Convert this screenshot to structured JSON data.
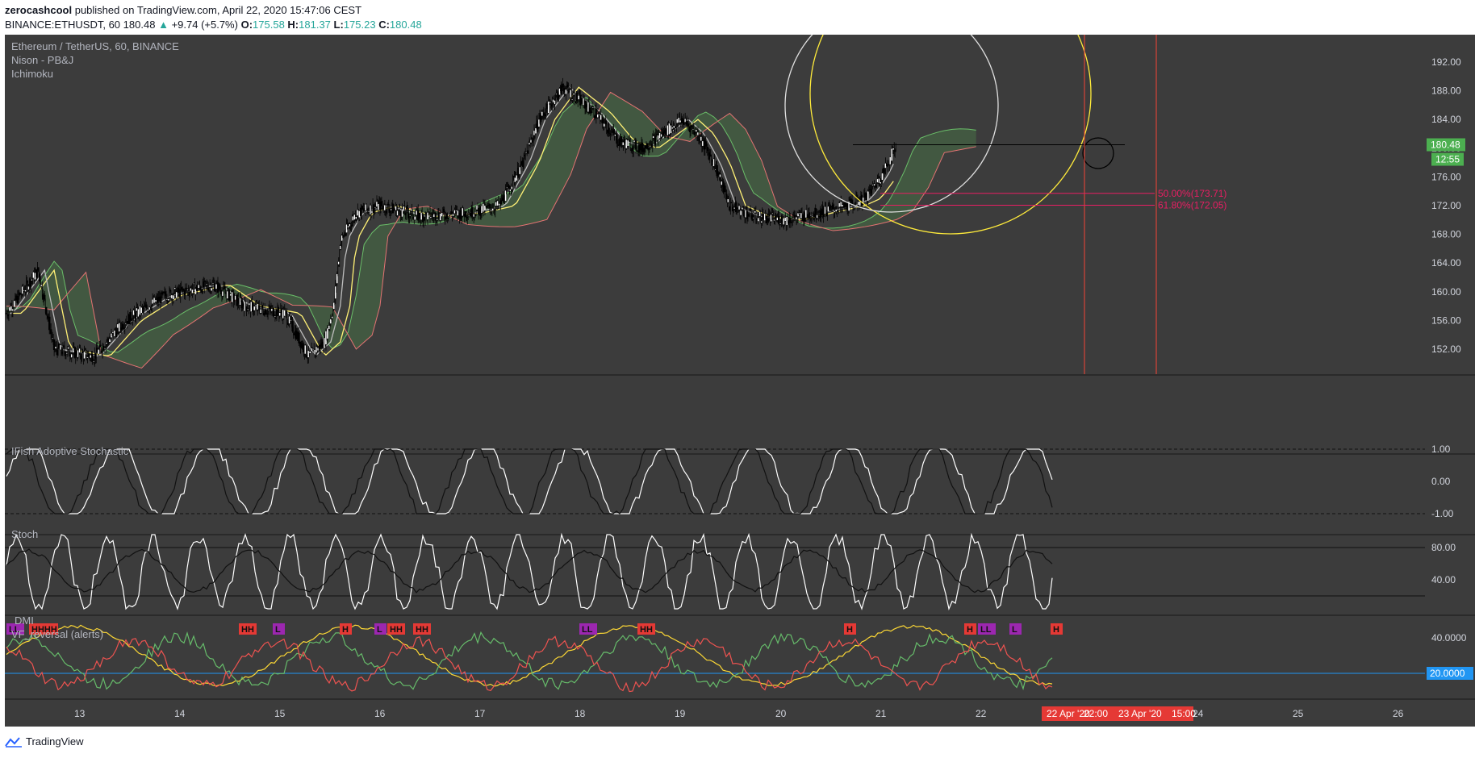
{
  "header": {
    "username": "zerocashcool",
    "published_text": "published on TradingView.com, April 22, 2020 15:47:06 CEST"
  },
  "ohlc": {
    "symbol": "BINANCE:ETHUSDT, 60",
    "last": "180.48",
    "change_arrow": "▲",
    "change": "+9.74 (+5.7%)",
    "o_label": "O:",
    "o": "175.58",
    "h_label": "H:",
    "h": "181.37",
    "l_label": "L:",
    "l": "175.23",
    "c_label": "C:",
    "c": "180.48"
  },
  "main_pane": {
    "title": "Ethereum / TetherUS, 60, BINANCE",
    "indicators": [
      "Nison - PB&J",
      "Ichimoku"
    ],
    "price_ticks": [
      "192.00",
      "188.00",
      "184.00",
      "180.00",
      "176.00",
      "172.00",
      "168.00",
      "164.00",
      "160.00",
      "156.00",
      "152.00"
    ],
    "last_price_badge": "180.48",
    "countdown_badge": "12:55",
    "fib_labels": [
      "50.00%(173.71)",
      "61.80%(172.05)"
    ]
  },
  "panes": {
    "ifish": {
      "title": "IFish Adoptive Stochastic",
      "ticks": [
        "1.00",
        "0.00",
        "-1.00"
      ]
    },
    "stoch": {
      "title": "Stoch",
      "ticks": [
        "80.00",
        "40.00"
      ]
    },
    "dmi": {
      "title": "DMI",
      "subtitle": "VF_reversal (alerts)",
      "ticks": [
        "40.0000"
      ],
      "level_badge": "20.0000"
    }
  },
  "markers": {
    "labels": [
      "LL",
      "HHHH",
      "HH",
      "L",
      "H",
      "L",
      "HH",
      "HH",
      "LL",
      "HH",
      "H",
      "H",
      "LL",
      "L",
      "H"
    ],
    "colors": {
      "H": "#e53935",
      "L": "#9c27b0"
    }
  },
  "time_axis": {
    "labels": [
      "13",
      "14",
      "15",
      "16",
      "17",
      "18",
      "19",
      "20",
      "21",
      "22",
      "24",
      "25",
      "26"
    ],
    "range_badges": [
      "22 Apr '20",
      "22:00",
      "23 Apr '20",
      "15:00"
    ]
  },
  "footer": {
    "brand": "TradingView"
  },
  "colors": {
    "chart_bg": "#3c3c3c",
    "last_price": "#4caf50",
    "fib": "#e91e63",
    "vertical_line": "#f44336",
    "yellow_circle": "#ffeb3b",
    "level_line": "#2196f3",
    "cloud_bull": "#4c8c4a",
    "cloud_bear": "#b04040"
  }
}
